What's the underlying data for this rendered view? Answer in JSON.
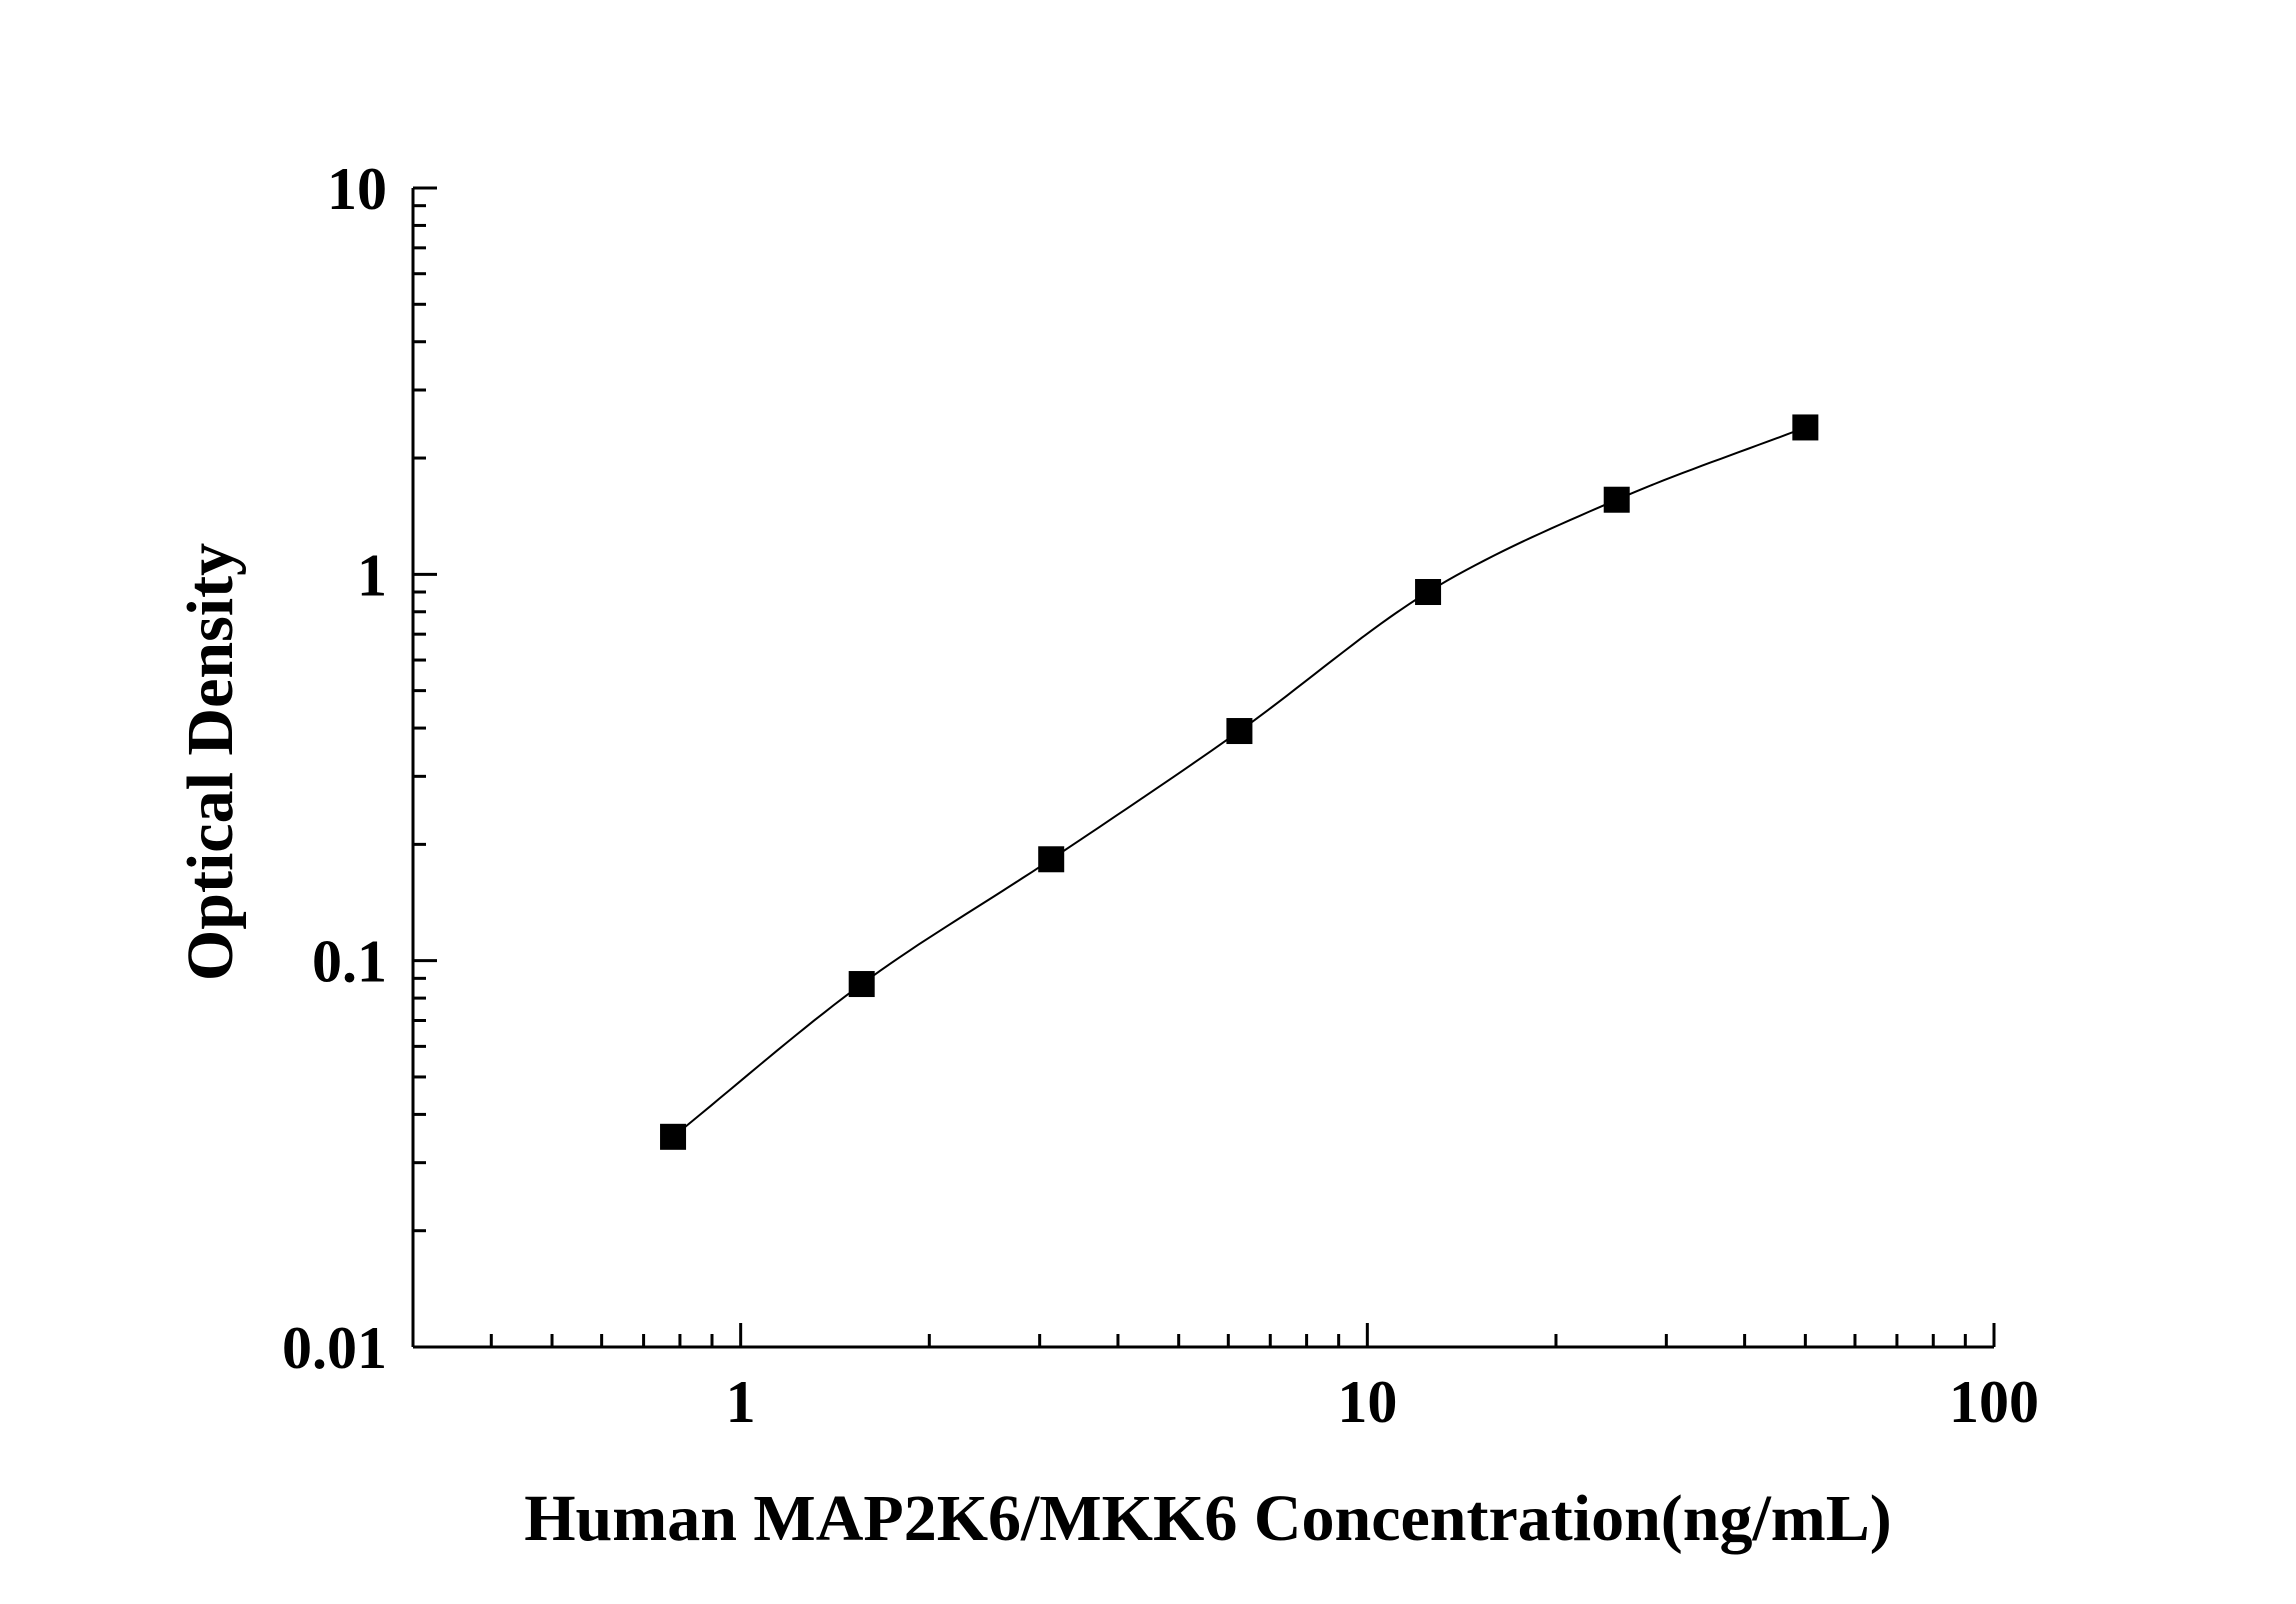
{
  "chart_data": {
    "type": "scatter",
    "x_scale": "log",
    "y_scale": "log",
    "xlim": [
      0.3,
      100
    ],
    "ylim": [
      0.01,
      10
    ],
    "xlabel": "Human MAP2K6/MKK6 Concentration(ng/mL)",
    "ylabel": "Optical Density",
    "x_ticks": [
      {
        "value": 1,
        "label": "1"
      },
      {
        "value": 10,
        "label": "10"
      },
      {
        "value": 100,
        "label": "100"
      }
    ],
    "y_ticks": [
      {
        "value": 0.01,
        "label": "0.01"
      },
      {
        "value": 0.1,
        "label": "0.1"
      },
      {
        "value": 1,
        "label": "1"
      },
      {
        "value": 10,
        "label": "10"
      }
    ],
    "grid": false,
    "legend": "none",
    "marker": "square",
    "marker_color": "#000000",
    "line_color": "#000000",
    "series": [
      {
        "x": [
          0.78,
          1.56,
          3.13,
          6.25,
          12.5,
          25,
          50
        ],
        "y": [
          0.035,
          0.087,
          0.183,
          0.393,
          0.9,
          1.56,
          2.4
        ],
        "fit_curve": true
      }
    ]
  }
}
